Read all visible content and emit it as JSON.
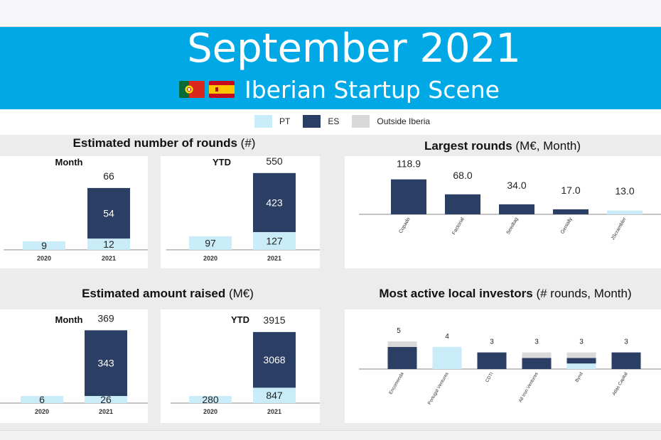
{
  "header": {
    "title": "September 2021",
    "subtitle": "Iberian Startup Scene",
    "bg_color": "#00a9e6"
  },
  "legend": {
    "items": [
      {
        "label": "PT",
        "color": "#c9ecf8"
      },
      {
        "label": "ES",
        "color": "#2b3e63"
      },
      {
        "label": "Outside Iberia",
        "color": "#d9d9d9"
      }
    ]
  },
  "colors": {
    "pt": "#c9ecf8",
    "es": "#2b3e63",
    "outside": "#d9d9d9"
  },
  "panels": {
    "rounds": {
      "title_bold": "Estimated number of rounds",
      "title_rest": " (#)"
    },
    "largest": {
      "title_bold": "Largest rounds",
      "title_rest": " (M€, Month)"
    },
    "raised": {
      "title_bold": "Estimated amount raised",
      "title_rest": " (M€)"
    },
    "investors": {
      "title_bold": "Most active local investors",
      "title_rest": " (# rounds, Month)"
    }
  },
  "chart_data": [
    {
      "id": "rounds-month",
      "type": "bar",
      "stacked": true,
      "title": "Month",
      "categories": [
        "2020",
        "2021"
      ],
      "series": [
        {
          "name": "PT",
          "values": [
            9,
            12
          ]
        },
        {
          "name": "ES",
          "values": [
            null,
            54
          ]
        }
      ],
      "totals": [
        null,
        66
      ],
      "ylim": [
        0,
        72
      ]
    },
    {
      "id": "rounds-ytd",
      "type": "bar",
      "stacked": true,
      "title": "YTD",
      "categories": [
        "2020",
        "2021"
      ],
      "series": [
        {
          "name": "PT",
          "values": [
            97,
            127
          ]
        },
        {
          "name": "ES",
          "values": [
            null,
            423
          ]
        }
      ],
      "totals": [
        null,
        550
      ],
      "ylim": [
        0,
        600
      ]
    },
    {
      "id": "raised-month",
      "type": "bar",
      "stacked": true,
      "title": "Month",
      "categories": [
        "2020",
        "2021"
      ],
      "series": [
        {
          "name": "PT",
          "values": [
            6,
            26
          ]
        },
        {
          "name": "ES",
          "values": [
            null,
            343
          ]
        }
      ],
      "totals": [
        null,
        369
      ],
      "ylim": [
        0,
        400
      ]
    },
    {
      "id": "raised-ytd",
      "type": "bar",
      "stacked": true,
      "title": "YTD",
      "categories": [
        "2020",
        "2021"
      ],
      "series": [
        {
          "name": "PT",
          "values": [
            280,
            847
          ]
        },
        {
          "name": "ES",
          "values": [
            null,
            3068
          ]
        }
      ],
      "totals": [
        null,
        3915
      ],
      "ylim": [
        0,
        4300
      ]
    },
    {
      "id": "largest-rounds",
      "type": "bar",
      "categories": [
        "Copado",
        "Factorial",
        "Seedtag",
        "Genially",
        "JScrambler"
      ],
      "values": [
        118.9,
        68.0,
        34.0,
        17.0,
        13.0
      ],
      "labels": [
        "118.9",
        "68.0",
        "34.0",
        "17.0",
        "13.0"
      ],
      "bar_series": [
        "ES",
        "ES",
        "ES",
        "ES",
        "PT"
      ],
      "ylim": [
        0,
        140
      ]
    },
    {
      "id": "active-investors",
      "type": "bar",
      "stacked": true,
      "categories": [
        "Encomenda",
        "Portugal Ventures",
        "CDTI",
        "All Iron Ventures",
        "Bynd",
        "Atlas Capital"
      ],
      "totals": [
        5,
        4,
        3,
        3,
        3,
        3
      ],
      "series": [
        {
          "name": "PT",
          "values": [
            0,
            4,
            0,
            0,
            1,
            0
          ]
        },
        {
          "name": "ES",
          "values": [
            4,
            0,
            3,
            2,
            1,
            3
          ]
        },
        {
          "name": "Outside Iberia",
          "values": [
            1,
            0,
            0,
            1,
            1,
            0
          ]
        }
      ],
      "ylim": [
        0,
        6
      ]
    }
  ]
}
